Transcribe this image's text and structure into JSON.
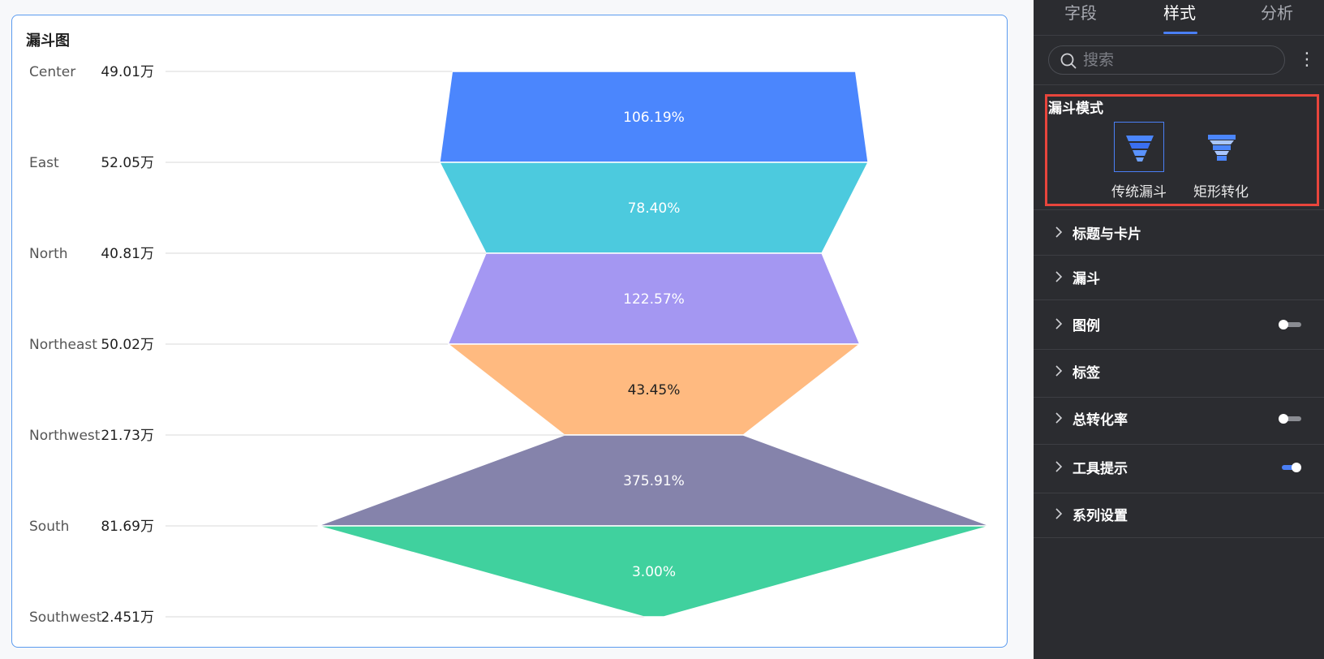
{
  "chart_card": {
    "title": "漏斗图"
  },
  "chart_data": {
    "type": "funnel",
    "title": "漏斗图",
    "categories": [
      "Center",
      "East",
      "North",
      "Northeast",
      "Northwest",
      "South",
      "Southwest"
    ],
    "values": [
      49.01,
      52.05,
      40.81,
      50.02,
      21.73,
      81.69,
      2.451
    ],
    "value_labels": [
      "49.01万",
      "52.05万",
      "40.81万",
      "50.02万",
      "21.73万",
      "81.69万",
      "2.451万"
    ],
    "unit": "万",
    "conversion_rates": [
      "106.19%",
      "78.40%",
      "122.57%",
      "43.45%",
      "375.91%",
      "3.00%"
    ],
    "colors": [
      "#4b86fd",
      "#4ccade",
      "#a497f2",
      "#ffba80",
      "#8583ab",
      "#40d19e"
    ],
    "label_colors": [
      "#ffffff",
      "#ffffff",
      "#ffffff",
      "#1f1f1f",
      "#ffffff",
      "#ffffff"
    ]
  },
  "panel": {
    "tabs": [
      {
        "label": "字段",
        "active": false
      },
      {
        "label": "样式",
        "active": true
      },
      {
        "label": "分析",
        "active": false
      }
    ],
    "search": {
      "placeholder": "搜索",
      "value": ""
    },
    "funnel_mode": {
      "title": "漏斗模式",
      "options": [
        {
          "label": "传统漏斗",
          "selected": true,
          "icon": "funnel-traditional-icon"
        },
        {
          "label": "矩形转化",
          "selected": false,
          "icon": "funnel-rect-icon"
        }
      ]
    },
    "sections": [
      {
        "label": "标题与卡片",
        "toggle": null
      },
      {
        "label": "漏斗",
        "toggle": null
      },
      {
        "label": "图例",
        "toggle": false
      },
      {
        "label": "标签",
        "toggle": null
      },
      {
        "label": "总转化率",
        "toggle": false
      },
      {
        "label": "工具提示",
        "toggle": true
      },
      {
        "label": "系列设置",
        "toggle": null
      }
    ],
    "accent_color": "#4a7ff5",
    "highlight_color": "#e8453c"
  }
}
